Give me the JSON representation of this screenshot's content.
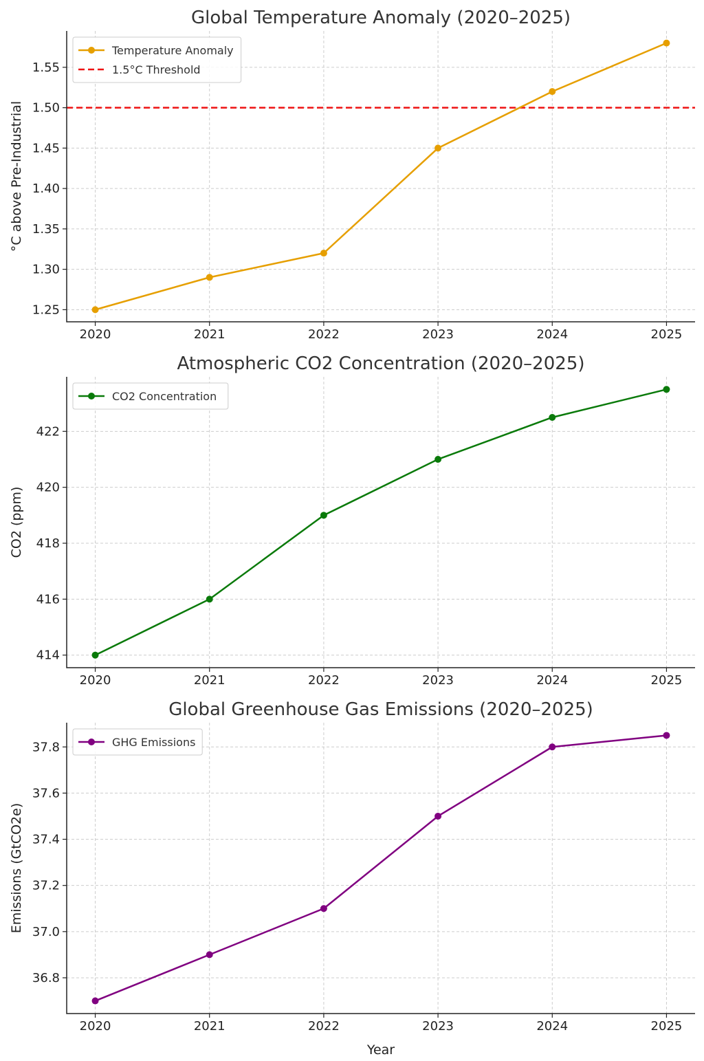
{
  "chart_data": [
    {
      "type": "line",
      "title": "Global Temperature Anomaly (2020–2025)",
      "xlabel": "",
      "ylabel": "°C above Pre-Industrial",
      "x": [
        2020,
        2021,
        2022,
        2023,
        2024,
        2025
      ],
      "xlim": [
        2019.75,
        2025.25
      ],
      "ylim": [
        1.235,
        1.595
      ],
      "yticks": [
        1.25,
        1.3,
        1.35,
        1.4,
        1.45,
        1.5,
        1.55
      ],
      "ytick_decimals": 2,
      "grid": true,
      "legend_position": "top-left",
      "series": [
        {
          "name": "Temperature Anomaly",
          "values": [
            1.25,
            1.29,
            1.32,
            1.45,
            1.52,
            1.58
          ],
          "color": "#e69f00",
          "marker": "circle"
        }
      ],
      "hlines": [
        {
          "name": "1.5°C Threshold",
          "y": 1.5,
          "color": "#ee1111",
          "style": "dashed"
        }
      ]
    },
    {
      "type": "line",
      "title": "Atmospheric CO2 Concentration (2020–2025)",
      "xlabel": "",
      "ylabel": "CO2 (ppm)",
      "x": [
        2020,
        2021,
        2022,
        2023,
        2024,
        2025
      ],
      "xlim": [
        2019.75,
        2025.25
      ],
      "ylim": [
        413.55,
        423.95
      ],
      "yticks": [
        414,
        416,
        418,
        420,
        422
      ],
      "ytick_decimals": 0,
      "grid": true,
      "legend_position": "top-left",
      "series": [
        {
          "name": "CO2 Concentration",
          "values": [
            414,
            416,
            419,
            421,
            422.5,
            423.5
          ],
          "color": "#0a7a0a",
          "marker": "circle"
        }
      ]
    },
    {
      "type": "line",
      "title": "Global Greenhouse Gas Emissions (2020–2025)",
      "xlabel": "Year",
      "ylabel": "Emissions (GtCO2e)",
      "x": [
        2020,
        2021,
        2022,
        2023,
        2024,
        2025
      ],
      "xlim": [
        2019.75,
        2025.25
      ],
      "ylim": [
        36.645,
        37.905
      ],
      "yticks": [
        36.8,
        37.0,
        37.2,
        37.4,
        37.6,
        37.8
      ],
      "ytick_decimals": 1,
      "grid": true,
      "legend_position": "top-left",
      "series": [
        {
          "name": "GHG Emissions",
          "values": [
            36.7,
            36.9,
            37.1,
            37.5,
            37.8,
            37.85
          ],
          "color": "#800080",
          "marker": "circle"
        }
      ]
    }
  ]
}
